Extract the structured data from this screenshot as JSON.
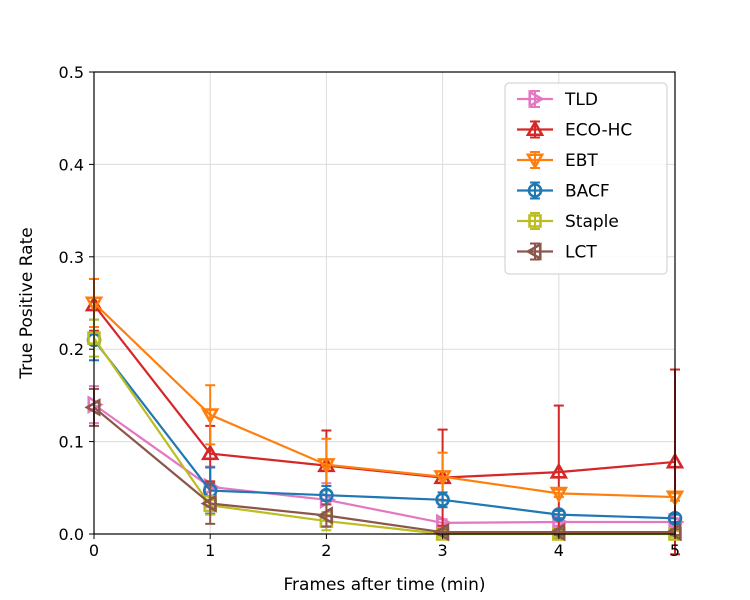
{
  "chart_data": {
    "type": "line",
    "xlabel": "Frames after time (min)",
    "ylabel": "True Positive Rate",
    "x": [
      0,
      1,
      2,
      3,
      4,
      5
    ],
    "xlim": [
      0,
      5
    ],
    "ylim": [
      0,
      0.5
    ],
    "xticks": [
      "0",
      "1",
      "2",
      "3",
      "4",
      "5"
    ],
    "yticks": [
      "0.0",
      "0.1",
      "0.2",
      "0.3",
      "0.4",
      "0.5"
    ],
    "grid": true,
    "legend_position": "top-right",
    "series": [
      {
        "name": "TLD",
        "color": "#e377c2",
        "marker": "triangle-right",
        "values": [
          0.14,
          0.051,
          0.037,
          0.012,
          0.013,
          0.013
        ],
        "errors": [
          0.02,
          0.022,
          0.018,
          0.004,
          0.004,
          0.004
        ]
      },
      {
        "name": "ECO-HC",
        "color": "#d62728",
        "marker": "triangle-up",
        "values": [
          0.248,
          0.087,
          0.074,
          0.061,
          0.067,
          0.078
        ],
        "errors": [
          0.028,
          0.03,
          0.038,
          0.052,
          0.072,
          0.1
        ]
      },
      {
        "name": "EBT",
        "color": "#ff7f0e",
        "marker": "triangle-down",
        "values": [
          0.25,
          0.129,
          0.075,
          0.062,
          0.044,
          0.04
        ],
        "errors": [
          0.026,
          0.032,
          0.028,
          0.026,
          0.004,
          0.004
        ]
      },
      {
        "name": "BACF",
        "color": "#1f77b4",
        "marker": "circle",
        "values": [
          0.21,
          0.047,
          0.042,
          0.037,
          0.021,
          0.017
        ],
        "errors": [
          0.022,
          0.025,
          0.01,
          0.008,
          0.004,
          0.004
        ]
      },
      {
        "name": "Staple",
        "color": "#bcbd22",
        "marker": "square",
        "values": [
          0.212,
          0.031,
          0.014,
          0.0,
          0.0,
          0.0
        ],
        "errors": [
          0.02,
          0.01,
          0.01,
          0.003,
          0.003,
          0.003
        ]
      },
      {
        "name": "LCT",
        "color": "#8c564b",
        "marker": "triangle-left",
        "values": [
          0.137,
          0.033,
          0.02,
          0.002,
          0.002,
          0.002
        ],
        "errors": [
          0.02,
          0.022,
          0.012,
          0.003,
          0.003,
          0.003
        ]
      }
    ]
  }
}
